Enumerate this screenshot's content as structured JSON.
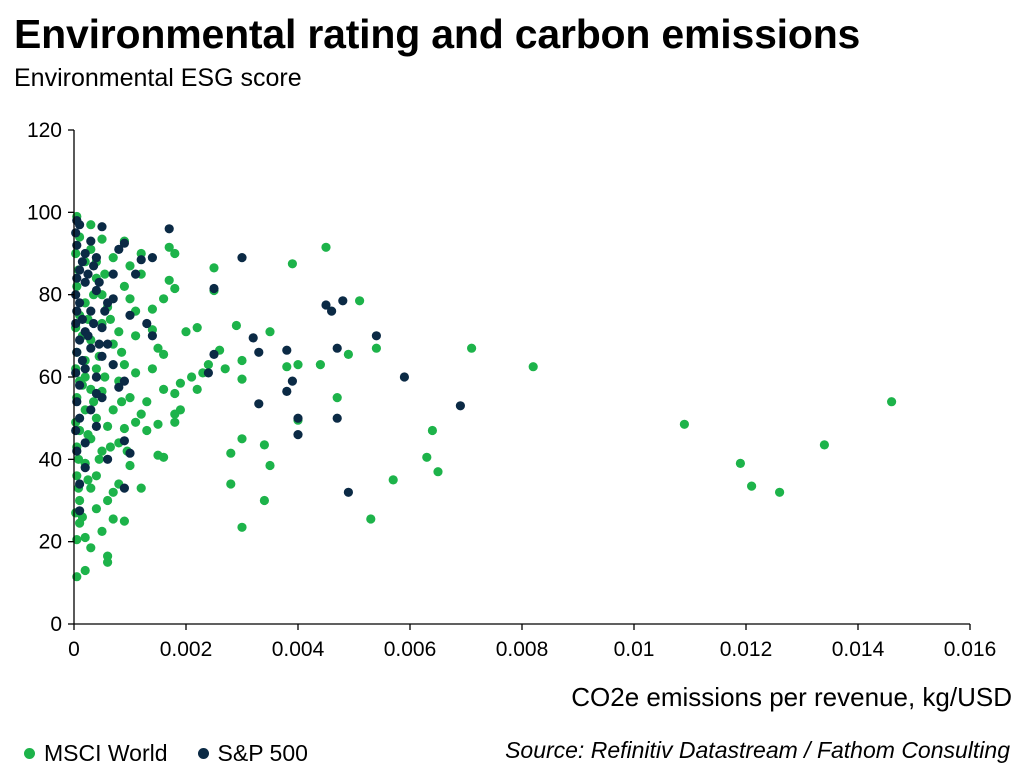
{
  "header": {
    "title": "Environmental rating and carbon emissions",
    "subtitle": "Environmental ESG score"
  },
  "footer": {
    "source": "Source: Refinitiv Datastream / Fathom Consulting"
  },
  "colors": {
    "msci": "#1db34a",
    "sp": "#0b2a45",
    "axis": "#000000"
  },
  "chart_data": {
    "type": "scatter",
    "title": "Environmental rating and carbon emissions",
    "subtitle": "Environmental ESG score",
    "xlabel": "CO2e emissions per revenue, kg/USD",
    "ylabel": "",
    "xlim": [
      0,
      0.016
    ],
    "ylim": [
      0,
      120
    ],
    "x_ticks": [
      "0",
      "0.002",
      "0.004",
      "0.006",
      "0.008",
      "0.01",
      "0.012",
      "0.014",
      "0.016"
    ],
    "y_ticks": [
      "0",
      "20",
      "40",
      "60",
      "80",
      "100",
      "120"
    ],
    "grid": false,
    "legend_position": "bottom-left",
    "series": [
      {
        "name": "MSCI World",
        "color": "#1db34a",
        "points": [
          [
            0.0146,
            54
          ],
          [
            0.0134,
            43.5
          ],
          [
            0.0126,
            32
          ],
          [
            0.0121,
            33.5
          ],
          [
            0.0119,
            39
          ],
          [
            0.0109,
            48.5
          ],
          [
            0.0082,
            62.5
          ],
          [
            0.0071,
            67
          ],
          [
            0.0065,
            37
          ],
          [
            0.0064,
            47
          ],
          [
            0.0063,
            40.5
          ],
          [
            0.0057,
            35
          ],
          [
            0.0054,
            67
          ],
          [
            0.0053,
            25.5
          ],
          [
            0.0051,
            78.5
          ],
          [
            0.0049,
            65.5
          ],
          [
            0.0047,
            55
          ],
          [
            0.0045,
            91.5
          ],
          [
            0.0044,
            63
          ],
          [
            0.004,
            49.5
          ],
          [
            0.004,
            63
          ],
          [
            0.0039,
            87.5
          ],
          [
            0.0038,
            62.5
          ],
          [
            0.0035,
            71
          ],
          [
            0.0035,
            38.5
          ],
          [
            0.0034,
            30
          ],
          [
            0.0034,
            43.5
          ],
          [
            0.003,
            45
          ],
          [
            0.003,
            59.5
          ],
          [
            0.003,
            23.5
          ],
          [
            0.003,
            64
          ],
          [
            0.0029,
            72.5
          ],
          [
            0.0028,
            34
          ],
          [
            0.0028,
            41.5
          ],
          [
            0.0027,
            62
          ],
          [
            0.0026,
            66.5
          ],
          [
            0.0025,
            81
          ],
          [
            0.0025,
            86.5
          ],
          [
            0.0024,
            63
          ],
          [
            0.0023,
            61
          ],
          [
            0.0022,
            72
          ],
          [
            0.0022,
            57
          ],
          [
            0.0021,
            60
          ],
          [
            0.002,
            71
          ],
          [
            0.0019,
            52
          ],
          [
            0.0019,
            58.5
          ],
          [
            0.0018,
            49
          ],
          [
            0.0018,
            51
          ],
          [
            0.0018,
            56
          ],
          [
            0.0018,
            81.5
          ],
          [
            0.0018,
            90
          ],
          [
            0.0017,
            91.5
          ],
          [
            0.0017,
            83.5
          ],
          [
            0.0016,
            79
          ],
          [
            0.0016,
            65.5
          ],
          [
            0.0016,
            57
          ],
          [
            0.0015,
            67
          ],
          [
            0.0015,
            41
          ],
          [
            0.0015,
            48.5
          ],
          [
            0.0016,
            40.5
          ],
          [
            0.0014,
            76.5
          ],
          [
            0.0014,
            71.5
          ],
          [
            0.0014,
            62
          ],
          [
            0.0013,
            54
          ],
          [
            0.0013,
            47
          ],
          [
            0.0012,
            85
          ],
          [
            0.0012,
            90
          ],
          [
            0.0012,
            33
          ],
          [
            0.0012,
            51
          ],
          [
            0.0011,
            70
          ],
          [
            0.0011,
            76
          ],
          [
            0.0011,
            61
          ],
          [
            0.0011,
            49
          ],
          [
            0.001,
            87
          ],
          [
            0.001,
            79
          ],
          [
            0.001,
            38.5
          ],
          [
            0.001,
            55
          ],
          [
            0.0009,
            93
          ],
          [
            0.0009,
            82
          ],
          [
            0.0009,
            25
          ],
          [
            0.0009,
            47.5
          ],
          [
            0.0009,
            63
          ],
          [
            0.0008,
            71
          ],
          [
            0.0008,
            34
          ],
          [
            0.0008,
            59
          ],
          [
            0.0008,
            44
          ],
          [
            0.0007,
            89
          ],
          [
            0.0007,
            32
          ],
          [
            0.0007,
            25.5
          ],
          [
            0.0007,
            68
          ],
          [
            0.0007,
            52
          ],
          [
            0.0006,
            16.5
          ],
          [
            0.0006,
            15
          ],
          [
            0.0006,
            77
          ],
          [
            0.0006,
            48
          ],
          [
            0.0006,
            30
          ],
          [
            0.0005,
            93.5
          ],
          [
            0.0005,
            73
          ],
          [
            0.0005,
            56.5
          ],
          [
            0.0005,
            22.5
          ],
          [
            0.0005,
            42
          ],
          [
            0.0004,
            84
          ],
          [
            0.0004,
            62
          ],
          [
            0.0004,
            28
          ],
          [
            0.0004,
            36
          ],
          [
            0.0004,
            50
          ],
          [
            0.0003,
            97
          ],
          [
            0.0003,
            69
          ],
          [
            0.0003,
            18.5
          ],
          [
            0.0003,
            33
          ],
          [
            0.0003,
            45
          ],
          [
            0.0003,
            57
          ],
          [
            0.0002,
            88
          ],
          [
            0.0002,
            78
          ],
          [
            0.0002,
            13
          ],
          [
            0.0002,
            21
          ],
          [
            0.0002,
            39
          ],
          [
            0.0002,
            52
          ],
          [
            0.0002,
            64
          ],
          [
            0.0001,
            94
          ],
          [
            0.0001,
            75
          ],
          [
            0.0001,
            24.5
          ],
          [
            0.0001,
            30
          ],
          [
            0.0001,
            47
          ],
          [
            0.0001,
            59
          ],
          [
            5e-05,
            99
          ],
          [
            5e-05,
            82
          ],
          [
            5e-05,
            11.5
          ],
          [
            5e-05,
            20.5
          ],
          [
            5e-05,
            36
          ],
          [
            5e-05,
            43
          ],
          [
            5e-05,
            55
          ],
          [
            5e-05,
            66
          ],
          [
            3e-05,
            90
          ],
          [
            3e-05,
            72
          ],
          [
            3e-05,
            27
          ],
          [
            3e-05,
            49
          ],
          [
            3e-05,
            62
          ],
          [
            8e-05,
            86
          ],
          [
            8e-05,
            33
          ],
          [
            8e-05,
            40
          ],
          [
            0.00015,
            70
          ],
          [
            0.00015,
            58
          ],
          [
            0.00015,
            26
          ],
          [
            0.00025,
            74
          ],
          [
            0.00025,
            35
          ],
          [
            0.00025,
            46
          ],
          [
            0.00035,
            80
          ],
          [
            0.00035,
            54
          ],
          [
            0.00045,
            65
          ],
          [
            0.00045,
            40
          ],
          [
            0.00055,
            60
          ],
          [
            0.00055,
            85
          ],
          [
            0.00065,
            43
          ],
          [
            0.00065,
            74
          ],
          [
            0.00085,
            66
          ],
          [
            0.00085,
            54
          ],
          [
            0.00095,
            42
          ],
          [
            0.0003,
            91
          ],
          [
            0.0004,
            88
          ],
          [
            0.0005,
            80
          ],
          [
            0.0002,
            60
          ]
        ]
      },
      {
        "name": "S&P 500",
        "color": "#0b2a45",
        "points": [
          [
            0.0069,
            53
          ],
          [
            0.0059,
            60
          ],
          [
            0.0054,
            70
          ],
          [
            0.0048,
            78.5
          ],
          [
            0.0049,
            32
          ],
          [
            0.0047,
            67
          ],
          [
            0.0047,
            50
          ],
          [
            0.0046,
            76
          ],
          [
            0.0045,
            77.5
          ],
          [
            0.004,
            46
          ],
          [
            0.004,
            50
          ],
          [
            0.0039,
            59
          ],
          [
            0.0038,
            56.5
          ],
          [
            0.0038,
            66.5
          ],
          [
            0.0033,
            53.5
          ],
          [
            0.0033,
            66
          ],
          [
            0.0032,
            69.5
          ],
          [
            0.003,
            89
          ],
          [
            0.0025,
            81.5
          ],
          [
            0.0025,
            65.5
          ],
          [
            0.0024,
            61
          ],
          [
            0.0017,
            96
          ],
          [
            0.0014,
            89
          ],
          [
            0.0014,
            70
          ],
          [
            0.0013,
            73
          ],
          [
            0.0012,
            88.5
          ],
          [
            0.001,
            75
          ],
          [
            0.001,
            41.5
          ],
          [
            0.0009,
            92.5
          ],
          [
            0.0009,
            44.5
          ],
          [
            0.0009,
            33
          ],
          [
            0.0009,
            59
          ],
          [
            0.0008,
            57.5
          ],
          [
            0.0008,
            91
          ],
          [
            0.0007,
            63
          ],
          [
            0.0007,
            85
          ],
          [
            0.0006,
            68
          ],
          [
            0.0006,
            78
          ],
          [
            0.0006,
            40
          ],
          [
            0.0005,
            96.5
          ],
          [
            0.0005,
            72
          ],
          [
            0.0005,
            55
          ],
          [
            0.0005,
            65
          ],
          [
            0.0004,
            89
          ],
          [
            0.0004,
            81
          ],
          [
            0.0004,
            60
          ],
          [
            0.0004,
            48
          ],
          [
            0.0003,
            93
          ],
          [
            0.0003,
            76
          ],
          [
            0.0003,
            67
          ],
          [
            0.0003,
            52
          ],
          [
            0.0002,
            90
          ],
          [
            0.0002,
            83
          ],
          [
            0.0002,
            71
          ],
          [
            0.0002,
            62
          ],
          [
            0.0002,
            44
          ],
          [
            0.0001,
            97
          ],
          [
            0.0001,
            86
          ],
          [
            0.0001,
            78
          ],
          [
            0.0001,
            69
          ],
          [
            0.0001,
            58
          ],
          [
            0.0001,
            50
          ],
          [
            0.0001,
            27.5
          ],
          [
            5e-05,
            98
          ],
          [
            5e-05,
            92
          ],
          [
            5e-05,
            84
          ],
          [
            5e-05,
            76
          ],
          [
            5e-05,
            66
          ],
          [
            5e-05,
            54
          ],
          [
            5e-05,
            42
          ],
          [
            3e-05,
            95
          ],
          [
            3e-05,
            80
          ],
          [
            3e-05,
            73
          ],
          [
            3e-05,
            61
          ],
          [
            3e-05,
            47
          ],
          [
            0.00015,
            88
          ],
          [
            0.00015,
            74
          ],
          [
            0.00015,
            64
          ],
          [
            0.00025,
            85
          ],
          [
            0.00025,
            70
          ],
          [
            0.00035,
            87
          ],
          [
            0.00035,
            73
          ],
          [
            0.00045,
            83
          ],
          [
            0.00045,
            68
          ],
          [
            0.0007,
            79
          ],
          [
            0.0011,
            85
          ],
          [
            0.00055,
            76
          ],
          [
            0.0002,
            38
          ],
          [
            0.0001,
            34
          ],
          [
            0.0004,
            56
          ]
        ]
      }
    ]
  }
}
